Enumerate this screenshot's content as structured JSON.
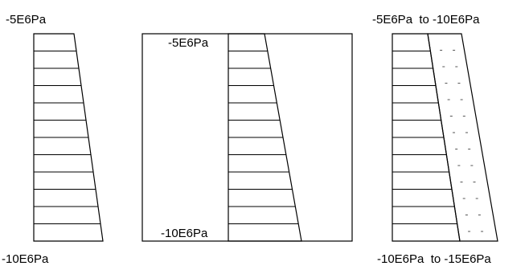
{
  "panel_left": {
    "top_label": "-5E6Pa",
    "bottom_label": "-10E6Pa"
  },
  "panel_middle": {
    "top_label": "-5E6Pa",
    "bottom_label": "-10E6Pa"
  },
  "panel_right": {
    "top_label": "-5E6Pa  to -10E6Pa",
    "bottom_label": "-10E6Pa  to -15E6Pa"
  }
}
